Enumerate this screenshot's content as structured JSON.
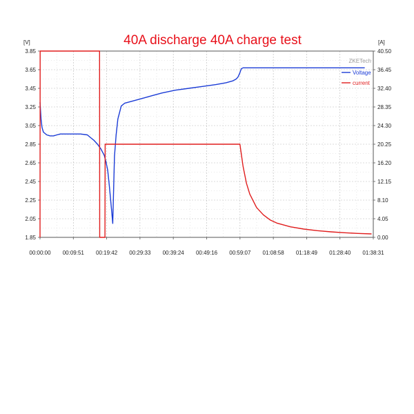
{
  "chart_data": {
    "type": "line",
    "title": "40A discharge 40A charge test",
    "brand": "ZKETech",
    "left_unit": "[V]",
    "right_unit": "[A]",
    "x_tick_labels": [
      "00:00:00",
      "00:09:51",
      "00:19:42",
      "00:29:33",
      "00:39:24",
      "00:49:16",
      "00:59:07",
      "01:08:58",
      "01:18:49",
      "01:28:40",
      "01:38:31"
    ],
    "x_ticks_min": [
      0,
      9.85,
      19.7,
      29.55,
      39.4,
      49.27,
      59.12,
      68.97,
      78.82,
      88.67,
      98.52
    ],
    "xlim": [
      0,
      98.52
    ],
    "y_left_ticks": [
      "1.85",
      "2.05",
      "2.25",
      "2.45",
      "2.65",
      "2.85",
      "3.05",
      "3.25",
      "3.45",
      "3.65",
      "3.85"
    ],
    "y_right_ticks": [
      "0.00",
      "4.05",
      "8.10",
      "12.15",
      "16.20",
      "20.25",
      "24.30",
      "28.35",
      "32.40",
      "36.45",
      "40.50"
    ],
    "ylim_left": [
      1.85,
      3.85
    ],
    "ylim_right": [
      0,
      40.5
    ],
    "grid": true,
    "legend_position": "top-right",
    "series": [
      {
        "name": "Voltage",
        "axis": "left",
        "color": "#1a3bd6",
        "x": [
          0,
          0.3,
          0.6,
          1,
          2,
          3,
          4,
          5,
          6,
          8,
          10,
          12,
          14,
          15,
          16,
          17,
          18,
          19,
          19.5,
          20,
          20.5,
          21,
          21.5,
          22,
          22.5,
          23,
          24,
          25,
          27,
          30,
          33,
          36,
          40,
          44,
          48,
          52,
          55,
          57,
          58,
          58.5,
          59,
          59.5,
          60,
          65,
          70,
          80,
          90,
          96
        ],
        "y": [
          3.3,
          3.12,
          3.03,
          2.98,
          2.95,
          2.94,
          2.94,
          2.95,
          2.96,
          2.96,
          2.96,
          2.96,
          2.95,
          2.92,
          2.89,
          2.85,
          2.8,
          2.73,
          2.66,
          2.57,
          2.4,
          2.2,
          2.0,
          2.72,
          2.95,
          3.12,
          3.26,
          3.29,
          3.31,
          3.34,
          3.37,
          3.4,
          3.43,
          3.45,
          3.47,
          3.49,
          3.51,
          3.53,
          3.55,
          3.57,
          3.61,
          3.66,
          3.67,
          3.67,
          3.67,
          3.67,
          3.67,
          3.67
        ]
      },
      {
        "name": "current",
        "axis": "right",
        "color": "#e01c1c",
        "x": [
          0,
          0.05,
          17.6,
          17.65,
          19.2,
          19.25,
          59.1,
          60,
          61,
          62,
          64,
          66,
          68,
          70,
          74,
          78,
          82,
          86,
          90,
          94,
          98
        ],
        "y": [
          0,
          40.5,
          40.5,
          0,
          0,
          20.25,
          20.25,
          15.5,
          11.8,
          9.4,
          6.5,
          4.9,
          3.8,
          3.1,
          2.3,
          1.8,
          1.45,
          1.2,
          1.0,
          0.85,
          0.75
        ]
      }
    ]
  }
}
